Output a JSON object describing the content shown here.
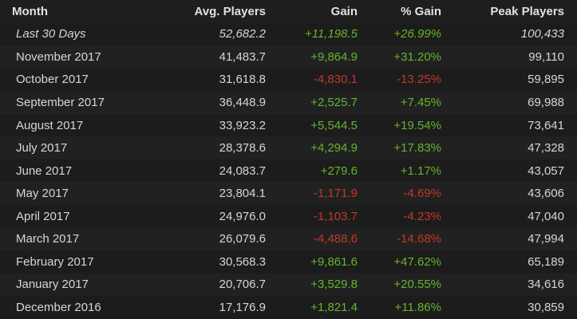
{
  "headers": [
    "Month",
    "Avg. Players",
    "Gain",
    "% Gain",
    "Peak Players"
  ],
  "colors": {
    "positive": "#66b32e",
    "negative": "#c0392b"
  },
  "rows": [
    {
      "month": "Last 30 Days",
      "avg": "52,682.2",
      "gain": "+11,198.5",
      "pct": "+26.99%",
      "peak": "100,433"
    },
    {
      "month": "November 2017",
      "avg": "41,483.7",
      "gain": "+9,864.9",
      "pct": "+31.20%",
      "peak": "99,110"
    },
    {
      "month": "October 2017",
      "avg": "31,618.8",
      "gain": "-4,830.1",
      "pct": "-13.25%",
      "peak": "59,895"
    },
    {
      "month": "September 2017",
      "avg": "36,448.9",
      "gain": "+2,525.7",
      "pct": "+7.45%",
      "peak": "69,988"
    },
    {
      "month": "August 2017",
      "avg": "33,923.2",
      "gain": "+5,544.5",
      "pct": "+19.54%",
      "peak": "73,641"
    },
    {
      "month": "July 2017",
      "avg": "28,378.6",
      "gain": "+4,294.9",
      "pct": "+17.83%",
      "peak": "47,328"
    },
    {
      "month": "June 2017",
      "avg": "24,083.7",
      "gain": "+279.6",
      "pct": "+1.17%",
      "peak": "43,057"
    },
    {
      "month": "May 2017",
      "avg": "23,804.1",
      "gain": "-1,171.9",
      "pct": "-4.69%",
      "peak": "43,606"
    },
    {
      "month": "April 2017",
      "avg": "24,976.0",
      "gain": "-1,103.7",
      "pct": "-4.23%",
      "peak": "47,040"
    },
    {
      "month": "March 2017",
      "avg": "26,079.6",
      "gain": "-4,488.6",
      "pct": "-14.68%",
      "peak": "47,994"
    },
    {
      "month": "February 2017",
      "avg": "30,568.3",
      "gain": "+9,861.6",
      "pct": "+47.62%",
      "peak": "65,189"
    },
    {
      "month": "January 2017",
      "avg": "20,706.7",
      "gain": "+3,529.8",
      "pct": "+20.55%",
      "peak": "34,616"
    },
    {
      "month": "December 2016",
      "avg": "17,176.9",
      "gain": "+1,821.4",
      "pct": "+11.86%",
      "peak": "30,859"
    }
  ]
}
